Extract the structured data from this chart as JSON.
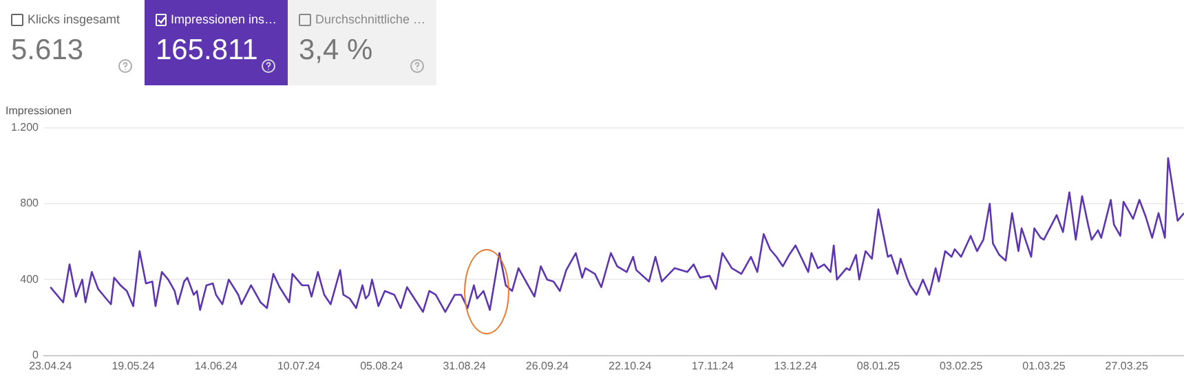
{
  "chart_data": [
    {
      "type": "other",
      "annotations": [
        "Klicks insgesamt",
        "5.613",
        "Impressionen ins…",
        "165.811",
        "Durchschnittliche …",
        "3,4 %"
      ]
    },
    {
      "type": "line",
      "ylabel": "Impressionen",
      "grid": "y",
      "legend": false,
      "marker": "none",
      "line_style": "solid",
      "xlim": [
        "2024-04-21",
        "2025-04-14"
      ],
      "xticks": [
        {
          "value": "2024-04-23",
          "label": "23.04.24"
        },
        {
          "value": "2024-05-19",
          "label": "19.05.24"
        },
        {
          "value": "2024-06-14",
          "label": "14.06.24"
        },
        {
          "value": "2024-07-10",
          "label": "10.07.24"
        },
        {
          "value": "2024-08-05",
          "label": "05.08.24"
        },
        {
          "value": "2024-08-31",
          "label": "31.08.24"
        },
        {
          "value": "2024-09-26",
          "label": "26.09.24"
        },
        {
          "value": "2024-10-22",
          "label": "22.10.24"
        },
        {
          "value": "2024-11-17",
          "label": "17.11.24"
        },
        {
          "value": "2024-12-13",
          "label": "13.12.24"
        },
        {
          "value": "2025-01-08",
          "label": "08.01.25"
        },
        {
          "value": "2025-02-03",
          "label": "03.02.25"
        },
        {
          "value": "2025-03-01",
          "label": "01.03.25"
        },
        {
          "value": "2025-03-27",
          "label": "27.03.25"
        }
      ],
      "ylim": [
        0,
        1200
      ],
      "yticks": [
        0,
        400,
        800,
        {
          "value": 1200,
          "label": "1.200"
        }
      ],
      "x": [
        "2024-04-23",
        "2024-04-27",
        "2024-04-29",
        "2024-05-01",
        "2024-05-03",
        "2024-05-04",
        "2024-05-06",
        "2024-05-08",
        "2024-05-10",
        "2024-05-12",
        "2024-05-13",
        "2024-05-15",
        "2024-05-17",
        "2024-05-19",
        "2024-05-21",
        "2024-05-23",
        "2024-05-25",
        "2024-05-26",
        "2024-05-28",
        "2024-05-30",
        "2024-06-01",
        "2024-06-02",
        "2024-06-04",
        "2024-06-05",
        "2024-06-07",
        "2024-06-08",
        "2024-06-09",
        "2024-06-11",
        "2024-06-13",
        "2024-06-14",
        "2024-06-16",
        "2024-06-18",
        "2024-06-21",
        "2024-06-22",
        "2024-06-25",
        "2024-06-27",
        "2024-06-28",
        "2024-06-30",
        "2024-07-02",
        "2024-07-04",
        "2024-07-07",
        "2024-07-08",
        "2024-07-11",
        "2024-07-13",
        "2024-07-14",
        "2024-07-16",
        "2024-07-18",
        "2024-07-20",
        "2024-07-23",
        "2024-07-24",
        "2024-07-26",
        "2024-07-28",
        "2024-07-30",
        "2024-07-31",
        "2024-08-01",
        "2024-08-02",
        "2024-08-04",
        "2024-08-06",
        "2024-08-09",
        "2024-08-11",
        "2024-08-13",
        "2024-08-18",
        "2024-08-20",
        "2024-08-22",
        "2024-08-25",
        "2024-08-28",
        "2024-08-30",
        "2024-09-01",
        "2024-09-03",
        "2024-09-04",
        "2024-09-06",
        "2024-09-08",
        "2024-09-11",
        "2024-09-13",
        "2024-09-15",
        "2024-09-17",
        "2024-09-19",
        "2024-09-22",
        "2024-09-24",
        "2024-09-26",
        "2024-09-28",
        "2024-09-30",
        "2024-10-02",
        "2024-10-05",
        "2024-10-07",
        "2024-10-08",
        "2024-10-11",
        "2024-10-13",
        "2024-10-16",
        "2024-10-18",
        "2024-10-21",
        "2024-10-23",
        "2024-10-24",
        "2024-10-28",
        "2024-10-30",
        "2024-11-01",
        "2024-11-05",
        "2024-11-07",
        "2024-11-09",
        "2024-11-11",
        "2024-11-13",
        "2024-11-16",
        "2024-11-18",
        "2024-11-20",
        "2024-11-23",
        "2024-11-26",
        "2024-11-29",
        "2024-12-01",
        "2024-12-03",
        "2024-12-05",
        "2024-12-07",
        "2024-12-09",
        "2024-12-11",
        "2024-12-13",
        "2024-12-17",
        "2024-12-18",
        "2024-12-20",
        "2024-12-22",
        "2024-12-24",
        "2024-12-25",
        "2024-12-26",
        "2024-12-29",
        "2024-12-30",
        "2025-01-01",
        "2025-01-02",
        "2025-01-04",
        "2025-01-06",
        "2025-01-08",
        "2025-01-11",
        "2025-01-12",
        "2025-01-14",
        "2025-01-15",
        "2025-01-17",
        "2025-01-18",
        "2025-01-20",
        "2025-01-22",
        "2025-01-24",
        "2025-01-26",
        "2025-01-27",
        "2025-01-29",
        "2025-01-31",
        "2025-02-01",
        "2025-02-03",
        "2025-02-06",
        "2025-02-08",
        "2025-02-10",
        "2025-02-12",
        "2025-02-13",
        "2025-02-15",
        "2025-02-17",
        "2025-02-19",
        "2025-02-21",
        "2025-02-22",
        "2025-02-25",
        "2025-02-26",
        "2025-02-28",
        "2025-03-01",
        "2025-03-05",
        "2025-03-07",
        "2025-03-09",
        "2025-03-11",
        "2025-03-13",
        "2025-03-15",
        "2025-03-16",
        "2025-03-18",
        "2025-03-19",
        "2025-03-22",
        "2025-03-23",
        "2025-03-25",
        "2025-03-26",
        "2025-03-29",
        "2025-03-31",
        "2025-04-02",
        "2025-04-04",
        "2025-04-06",
        "2025-04-08",
        "2025-04-09",
        "2025-04-12",
        "2025-04-14"
      ],
      "series": [
        {
          "color": "#5e35b1",
          "values": [
            360,
            280,
            480,
            310,
            400,
            280,
            440,
            350,
            310,
            270,
            410,
            370,
            340,
            260,
            550,
            380,
            390,
            260,
            440,
            400,
            340,
            270,
            390,
            410,
            320,
            340,
            240,
            370,
            380,
            320,
            270,
            400,
            320,
            270,
            370,
            310,
            280,
            250,
            430,
            360,
            280,
            430,
            370,
            370,
            310,
            440,
            320,
            270,
            450,
            320,
            300,
            250,
            370,
            300,
            320,
            400,
            260,
            340,
            320,
            250,
            360,
            230,
            340,
            320,
            230,
            320,
            320,
            250,
            370,
            300,
            340,
            240,
            540,
            370,
            340,
            460,
            400,
            310,
            470,
            400,
            390,
            340,
            450,
            540,
            410,
            460,
            430,
            360,
            540,
            470,
            440,
            520,
            450,
            390,
            520,
            390,
            460,
            450,
            440,
            480,
            410,
            420,
            350,
            540,
            460,
            430,
            520,
            440,
            640,
            560,
            520,
            470,
            530,
            580,
            440,
            540,
            460,
            480,
            440,
            580,
            400,
            460,
            450,
            530,
            400,
            550,
            510,
            770,
            520,
            530,
            430,
            510,
            410,
            370,
            320,
            400,
            320,
            460,
            390,
            550,
            520,
            560,
            520,
            630,
            550,
            610,
            800,
            590,
            530,
            500,
            750,
            550,
            670,
            520,
            670,
            620,
            610,
            740,
            650,
            860,
            610,
            840,
            680,
            610,
            660,
            620,
            820,
            690,
            630,
            810,
            720,
            820,
            730,
            620,
            750,
            620,
            1040,
            710,
            750
          ]
        }
      ]
    }
  ]
}
